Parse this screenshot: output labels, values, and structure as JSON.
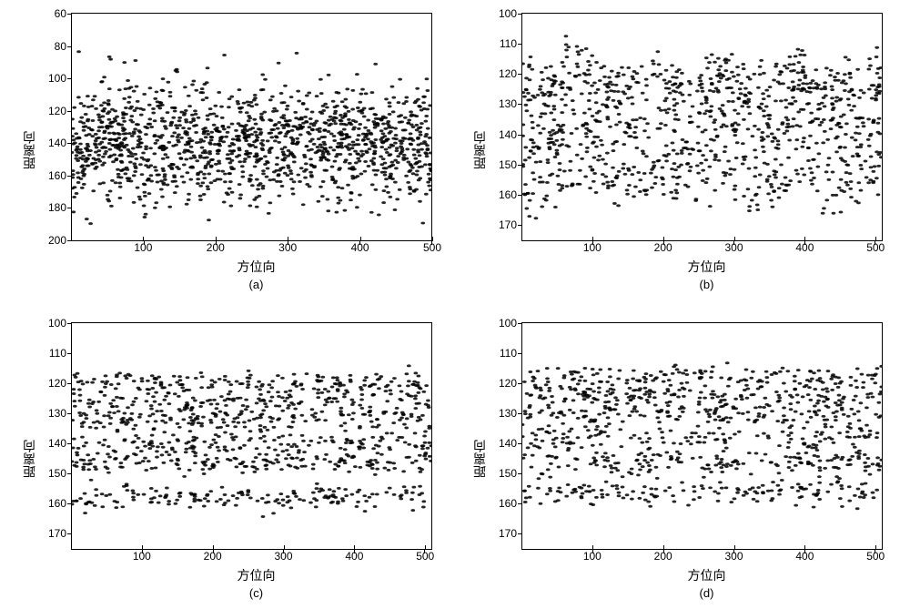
{
  "figure": {
    "background_color": "#ffffff",
    "border_color": "#000000",
    "font_family": "sans-serif",
    "label_fontsize": 14,
    "tick_fontsize": 12,
    "caption_fontsize": 13,
    "scatter_color": "#000000",
    "scatter_radius": 0.6,
    "scatter_opacity": 0.85,
    "n_points_per_panel": 1400,
    "panels": [
      {
        "id": "a",
        "caption": "(a)",
        "xlabel": "方位向",
        "ylabel": "距离向",
        "xlim": [
          0,
          500
        ],
        "ylim": [
          60,
          200
        ],
        "y_inverted": true,
        "xticks": [
          100,
          200,
          300,
          400,
          500
        ],
        "yticks": [
          60,
          80,
          100,
          120,
          140,
          160,
          180,
          200
        ],
        "data_model": {
          "type": "noisy_band_scatter",
          "band_center_y": 140,
          "band_halfwidth": 55,
          "vertical_streak_sigma": 18,
          "density_profile": "gaussian",
          "seed": 11
        }
      },
      {
        "id": "b",
        "caption": "(b)",
        "xlabel": "方位向",
        "ylabel": "距离向",
        "xlim": [
          0,
          510
        ],
        "ylim": [
          100,
          175
        ],
        "y_inverted": true,
        "xticks": [
          100,
          200,
          300,
          400,
          500
        ],
        "yticks": [
          100,
          110,
          120,
          130,
          140,
          150,
          160,
          170
        ],
        "data_model": {
          "type": "row_banded_scatter",
          "row_centers_y": [
            120,
            125,
            132,
            140,
            148,
            158
          ],
          "row_jitter": 3.5,
          "row_wave_amp": 3,
          "row_wave_freq": 0.06,
          "x_gap_prob": 0.25,
          "seed": 22
        }
      },
      {
        "id": "c",
        "caption": "(c)",
        "xlabel": "方位向",
        "ylabel": "距离向",
        "xlim": [
          0,
          510
        ],
        "ylim": [
          100,
          175
        ],
        "y_inverted": true,
        "xticks": [
          100,
          200,
          300,
          400,
          500
        ],
        "yticks": [
          100,
          110,
          120,
          130,
          140,
          150,
          160,
          170
        ],
        "data_model": {
          "type": "row_banded_scatter",
          "row_centers_y": [
            120,
            126,
            132,
            140,
            146,
            158
          ],
          "row_jitter": 2.0,
          "row_wave_amp": 0.8,
          "row_wave_freq": 0.05,
          "x_gap_prob": 0.28,
          "seed": 33
        }
      },
      {
        "id": "d",
        "caption": "(d)",
        "xlabel": "方位向",
        "ylabel": "距离向",
        "xlim": [
          0,
          510
        ],
        "ylim": [
          100,
          175
        ],
        "y_inverted": true,
        "xticks": [
          100,
          200,
          300,
          400,
          500
        ],
        "yticks": [
          100,
          110,
          120,
          130,
          140,
          150,
          160,
          170
        ],
        "data_model": {
          "type": "row_banded_scatter",
          "row_centers_y": [
            118,
            124,
            130,
            138,
            146,
            156
          ],
          "row_jitter": 2.2,
          "row_wave_amp": 0.6,
          "row_wave_freq": 0.05,
          "x_gap_prob": 0.3,
          "seed": 44
        }
      }
    ]
  }
}
